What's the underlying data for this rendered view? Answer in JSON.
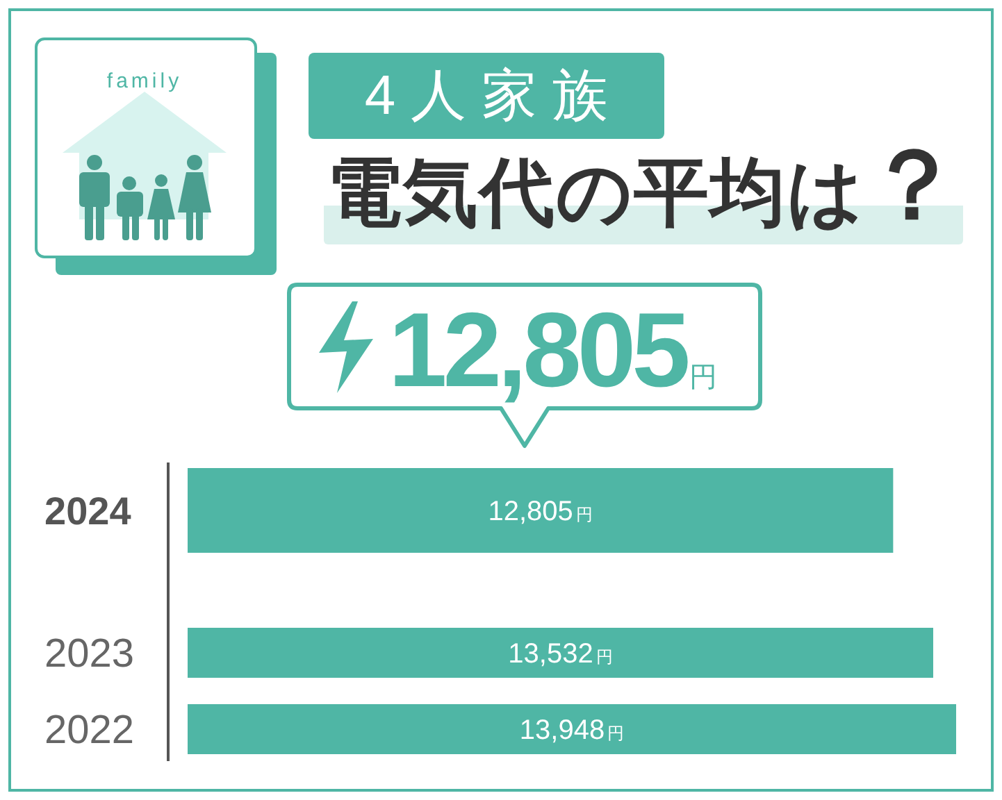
{
  "chart_data": {
    "type": "bar",
    "orientation": "horizontal",
    "title": "4人家族",
    "subtitle": "電気代の平均は？",
    "categories": [
      "2024",
      "2023",
      "2022"
    ],
    "values": [
      12805,
      13532,
      13948
    ],
    "color": "#4fb6a5",
    "value_labels": [
      "12,805円",
      "13,532円",
      "13,948円"
    ],
    "annotations": [
      "family",
      "12,805円"
    ]
  }
}
